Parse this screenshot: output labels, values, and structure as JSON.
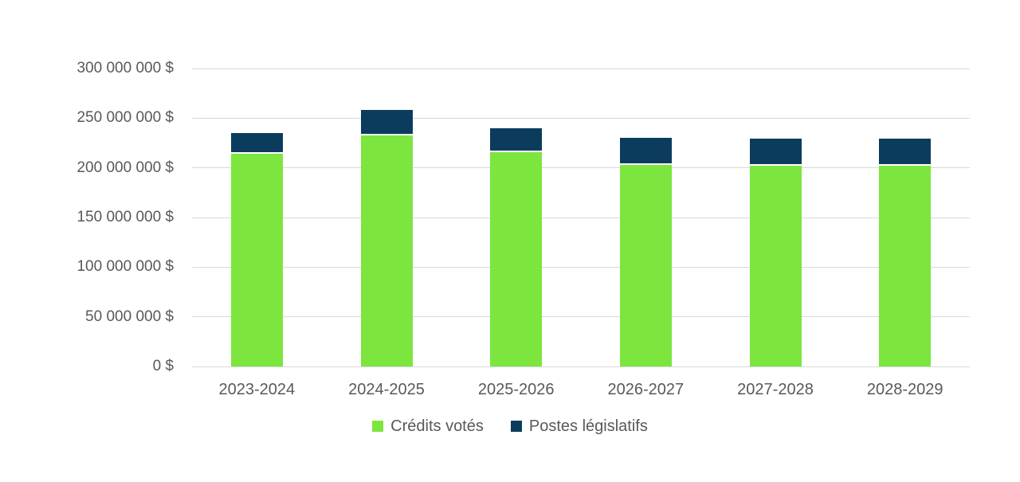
{
  "colors": {
    "background": "#ffffff",
    "axis_text": "#595959",
    "gridline": "#d9d9d9",
    "credits_votes": "#7ce63f",
    "postes_legislatifs": "#0b3c5d"
  },
  "legend": {
    "items": [
      {
        "label": "Crédits votés",
        "swatch": "green-square-icon",
        "color": "#7ce63f"
      },
      {
        "label": "Postes législatifs",
        "swatch": "navy-square-icon",
        "color": "#0b3c5d"
      }
    ]
  },
  "chart_data": {
    "type": "bar",
    "stacked": true,
    "grid": true,
    "legend_position": "bottom",
    "categories": [
      "2023-2024",
      "2024-2025",
      "2025-2026",
      "2026-2027",
      "2027-2028",
      "2028-2029"
    ],
    "series": [
      {
        "name": "Crédits votés",
        "color": "#7ce63f",
        "values": [
          214000000,
          233000000,
          216000000,
          203000000,
          202000000,
          202000000
        ]
      },
      {
        "name": "Postes législatifs",
        "color": "#0b3c5d",
        "values": [
          21000000,
          26000000,
          24000000,
          27000000,
          27000000,
          27000000
        ]
      }
    ],
    "totals": [
      235000000,
      259000000,
      240000000,
      230000000,
      229000000,
      229000000
    ],
    "ylim": [
      0,
      300000000
    ],
    "y_tick_step": 50000000,
    "y_tick_values": [
      0,
      50000000,
      100000000,
      150000000,
      200000000,
      250000000,
      300000000
    ],
    "y_tick_labels": [
      "0 $",
      "50 000 000 $",
      "100 000 000 $",
      "150 000 000 $",
      "200 000 000 $",
      "250 000 000 $",
      "300 000 000 $"
    ],
    "currency": "$",
    "unit": "dollars"
  }
}
